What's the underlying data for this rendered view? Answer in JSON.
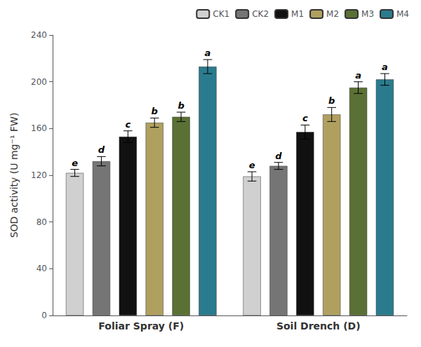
{
  "chart_data": {
    "type": "bar",
    "ylabel": "SOD activity (U mg⁻¹ FW)",
    "categories": [
      "Foliar Spray (F)",
      "Soil Drench (D)"
    ],
    "series": [
      {
        "name": "CK1",
        "color": "#d0d0d0",
        "values": [
          122,
          119
        ],
        "errors": [
          3,
          4
        ],
        "annotations": [
          "e",
          "e"
        ]
      },
      {
        "name": "CK2",
        "color": "#757575",
        "values": [
          132,
          128
        ],
        "errors": [
          4,
          3
        ],
        "annotations": [
          "d",
          "d"
        ]
      },
      {
        "name": "M1",
        "color": "#111111",
        "values": [
          153,
          157
        ],
        "errors": [
          5,
          6
        ],
        "annotations": [
          "c",
          "c"
        ]
      },
      {
        "name": "M2",
        "color": "#b0a060",
        "values": [
          165,
          172
        ],
        "errors": [
          4,
          6
        ],
        "annotations": [
          "b",
          "b"
        ]
      },
      {
        "name": "M3",
        "color": "#5a7035",
        "values": [
          170,
          195
        ],
        "errors": [
          4,
          5
        ],
        "annotations": [
          "b",
          "a"
        ]
      },
      {
        "name": "M4",
        "color": "#2b7b8e",
        "values": [
          213,
          202
        ],
        "errors": [
          6,
          5
        ],
        "annotations": [
          "a",
          "a"
        ]
      }
    ],
    "ylim": [
      0,
      240
    ],
    "yticks": [
      0,
      40,
      80,
      120,
      160,
      200,
      240
    ],
    "grid": false,
    "legend": "upper right"
  }
}
